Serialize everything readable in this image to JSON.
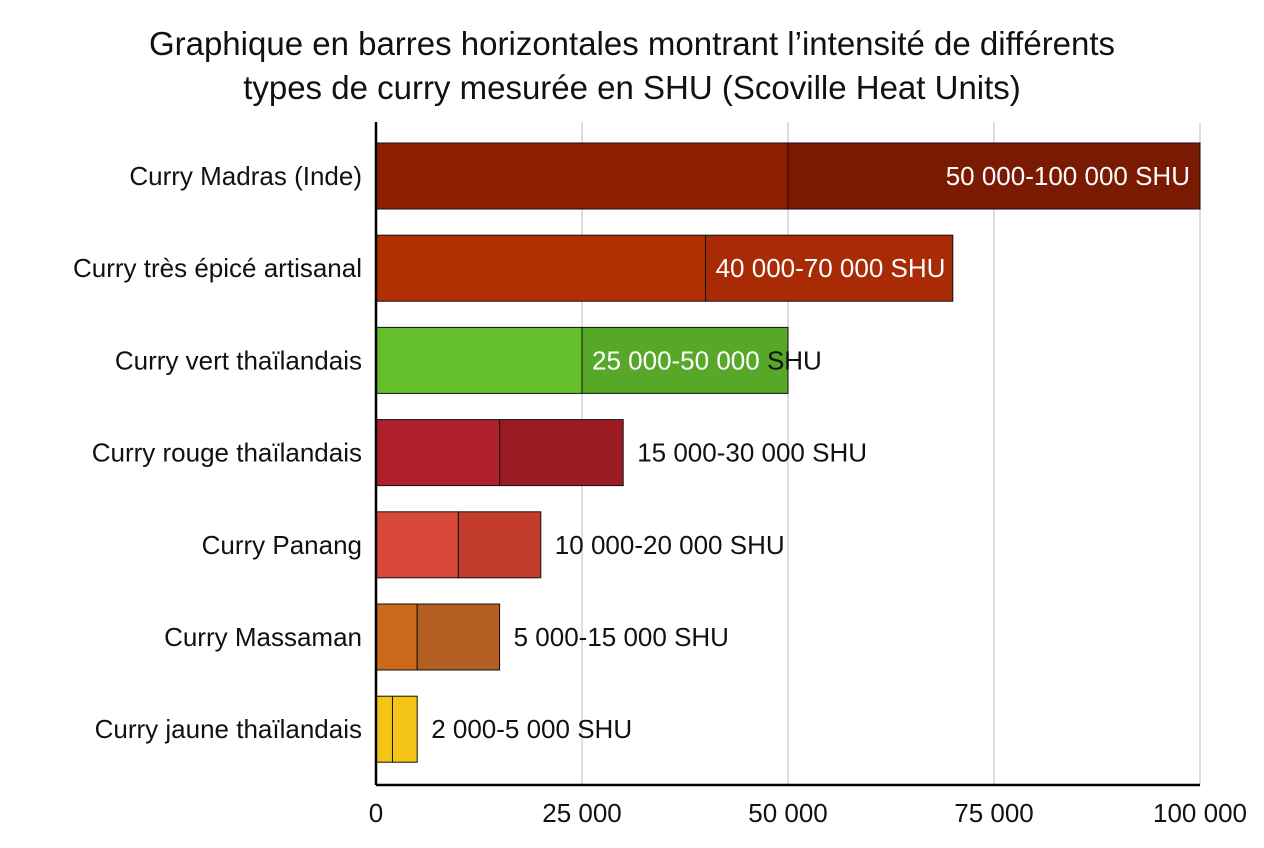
{
  "chart_data": {
    "type": "bar",
    "orientation": "horizontal",
    "title_lines": [
      "Graphique en barres horizontales montrant l’intensité de différents",
      "types de curry mesurée en SHU (Scoville Heat Units)"
    ],
    "xlabel": "",
    "ylabel": "",
    "xlim": [
      0,
      100000
    ],
    "x_ticks": [
      0,
      25000,
      50000,
      75000,
      100000
    ],
    "x_tick_labels": [
      "0",
      "25 000",
      "50 000",
      "75 000",
      "100 000"
    ],
    "grid": "vertical",
    "categories": [
      "Curry Madras (Inde)",
      "Curry très épicé artisanal",
      "Curry vert thaïlandais",
      "Curry rouge thaïlandais",
      "Curry Panang",
      "Curry Massaman",
      "Curry jaune thaïlandais"
    ],
    "ranges": [
      {
        "min": 50000,
        "max": 100000,
        "label": "50 000-100 000 SHU",
        "color_low": "#8e2000",
        "color_high": "#7a1a02",
        "label_color": "#ffffff"
      },
      {
        "min": 40000,
        "max": 70000,
        "label": "40 000-70 000 SHU",
        "color_low": "#b02e02",
        "color_high": "#a82b05",
        "label_color": "#ffffff"
      },
      {
        "min": 25000,
        "max": 50000,
        "label": "25 000-50 000 SHU",
        "color_low": "#64bf2a",
        "color_high": "#57a828",
        "label_color": "#ffffff"
      },
      {
        "min": 15000,
        "max": 30000,
        "label": "15 000-30 000 SHU",
        "color_low": "#b0202a",
        "color_high": "#9c1a21",
        "label_color": "#111111"
      },
      {
        "min": 10000,
        "max": 20000,
        "label": "10 000-20 000 SHU",
        "color_low": "#d8483a",
        "color_high": "#c43c2c",
        "label_color": "#111111"
      },
      {
        "min": 5000,
        "max": 15000,
        "label": "5 000-15 000 SHU",
        "color_low": "#cc6a1c",
        "color_high": "#b45e22",
        "label_color": "#111111"
      },
      {
        "min": 2000,
        "max": 5000,
        "label": "2 000-5 000 SHU",
        "color_low": "#f4c417",
        "color_high": "#f4c417",
        "label_color": "#111111"
      }
    ]
  }
}
